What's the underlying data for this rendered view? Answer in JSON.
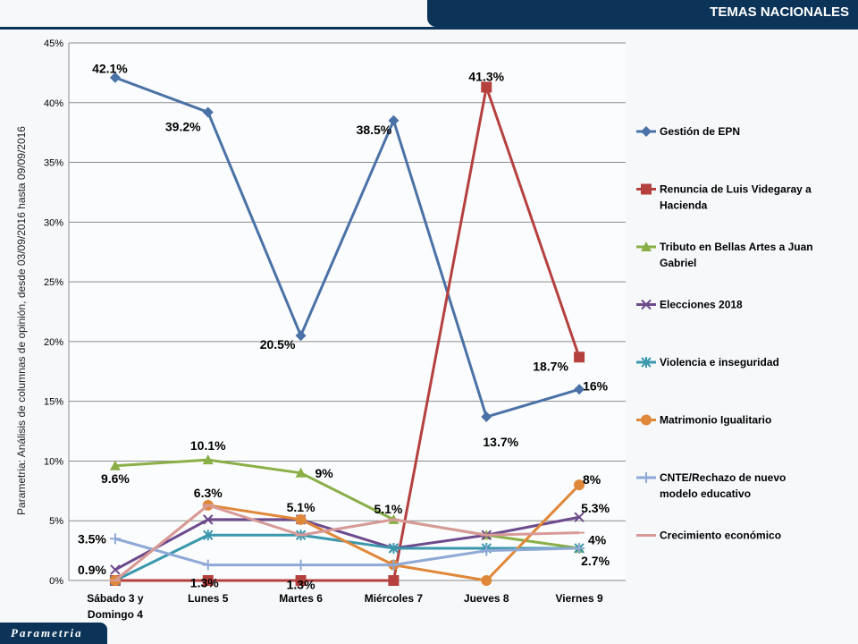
{
  "header": {
    "title": "TEMAS NACIONALES"
  },
  "footer": {
    "logo": "Parametria"
  },
  "chart_data": {
    "type": "line",
    "ylabel": "Parametria: Análisis de columnas de opinión, desde 03/09/2016 hasta  09/09/2016",
    "ylim": [
      0,
      45
    ],
    "yticks": [
      "0%",
      "5%",
      "10%",
      "15%",
      "20%",
      "25%",
      "30%",
      "35%",
      "40%",
      "45%"
    ],
    "categories": [
      [
        "Sábado 3 y",
        "Domingo 4"
      ],
      [
        "Lunes 5"
      ],
      [
        "Martes 6"
      ],
      [
        "Miércoles 7"
      ],
      [
        "Jueves 8"
      ],
      [
        "Viernes 9"
      ]
    ],
    "grid": true,
    "legend_position": "right",
    "series": [
      {
        "name": [
          "Gestión de EPN"
        ],
        "color": "#4a72a6",
        "marker": "diamond",
        "values": [
          42.1,
          39.2,
          20.5,
          38.5,
          13.7,
          16
        ]
      },
      {
        "name": [
          "Renuncia de Luis Videgaray a",
          "Hacienda"
        ],
        "color": "#b5413f",
        "marker": "square",
        "values": [
          0,
          0,
          0,
          0,
          41.3,
          18.7
        ]
      },
      {
        "name": [
          "Tributo en Bellas Artes a Juan",
          "Gabriel"
        ],
        "color": "#8aaf47",
        "marker": "triangle",
        "values": [
          9.6,
          10.1,
          9,
          5.1,
          3.8,
          2.7
        ]
      },
      {
        "name": [
          "Elecciones 2018"
        ],
        "color": "#6d4a8c",
        "marker": "x",
        "values": [
          0.9,
          5.1,
          5.1,
          2.7,
          3.8,
          5.3
        ]
      },
      {
        "name": [
          "Violencia e inseguridad"
        ],
        "color": "#3a98ad",
        "marker": "star",
        "values": [
          0,
          3.8,
          3.8,
          2.7,
          2.7,
          2.7
        ]
      },
      {
        "name": [
          "Matrimonio Igualitario"
        ],
        "color": "#e0883a",
        "marker": "circle",
        "values": [
          0,
          6.3,
          5.1,
          1.3,
          0,
          8
        ]
      },
      {
        "name": [
          "CNTE/Rechazo de nuevo",
          "modelo educativo"
        ],
        "color": "#8fa9d6",
        "marker": "plus",
        "values": [
          3.5,
          1.3,
          1.3,
          1.3,
          2.5,
          2.7
        ]
      },
      {
        "name": [
          "Crecimiento económico"
        ],
        "color": "#d79a98",
        "marker": "dash",
        "values": [
          0,
          6.3,
          3.8,
          5.1,
          3.8,
          4
        ]
      }
    ],
    "data_labels": [
      {
        "text": "42.1%",
        "cat": 0,
        "value": 42.1
      },
      {
        "text": "39.2%",
        "cat": 1,
        "value": 39.2
      },
      {
        "text": "20.5%",
        "cat": 2,
        "value": 20.5
      },
      {
        "text": "38.5%",
        "cat": 3,
        "value": 38.5
      },
      {
        "text": "41.3%",
        "cat": 4,
        "value": 41.3
      },
      {
        "text": "13.7%",
        "cat": 4,
        "value": 13.7
      },
      {
        "text": "18.7%",
        "cat": 5,
        "value": 18.7
      },
      {
        "text": "16%",
        "cat": 5,
        "value": 16
      },
      {
        "text": "9.6%",
        "cat": 0,
        "value": 9.6
      },
      {
        "text": "10.1%",
        "cat": 1,
        "value": 10.1
      },
      {
        "text": "9%",
        "cat": 2,
        "value": 9
      },
      {
        "text": "5.1%",
        "cat": 3,
        "value": 5.1
      },
      {
        "text": "6.3%",
        "cat": 1,
        "value": 6.3
      },
      {
        "text": "5.1%",
        "cat": 2,
        "value": 5.1
      },
      {
        "text": "3.5%",
        "cat": 0,
        "value": 3.5
      },
      {
        "text": "0.9%",
        "cat": 0,
        "value": 0.9
      },
      {
        "text": "1.3%",
        "cat": 1,
        "value": 1.3
      },
      {
        "text": "1.3%",
        "cat": 2,
        "value": 1.3
      },
      {
        "text": "8%",
        "cat": 5,
        "value": 8
      },
      {
        "text": "5.3%",
        "cat": 5,
        "value": 5.3
      },
      {
        "text": "4%",
        "cat": 5,
        "value": 4
      },
      {
        "text": "2.7%",
        "cat": 5,
        "value": 2.7
      }
    ]
  }
}
